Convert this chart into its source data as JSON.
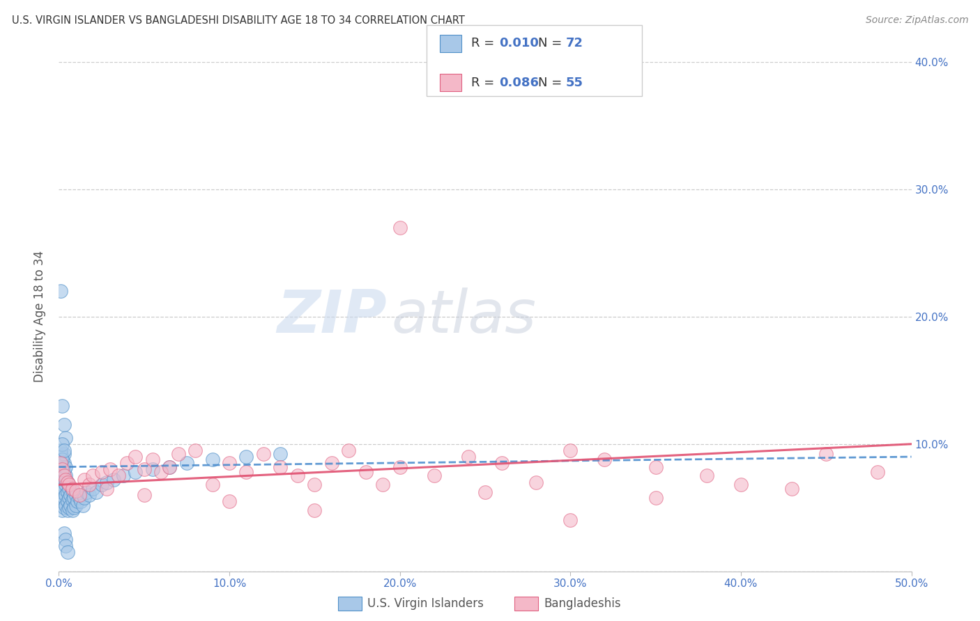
{
  "title": "U.S. VIRGIN ISLANDER VS BANGLADESHI DISABILITY AGE 18 TO 34 CORRELATION CHART",
  "source": "Source: ZipAtlas.com",
  "ylabel": "Disability Age 18 to 34",
  "xlim": [
    0.0,
    0.5
  ],
  "ylim": [
    0.0,
    0.4
  ],
  "xticks": [
    0.0,
    0.1,
    0.2,
    0.3,
    0.4,
    0.5
  ],
  "yticks": [
    0.0,
    0.1,
    0.2,
    0.3,
    0.4
  ],
  "xticklabels": [
    "0.0%",
    "10.0%",
    "20.0%",
    "30.0%",
    "40.0%",
    "50.0%"
  ],
  "yticklabels_right": [
    "",
    "10.0%",
    "20.0%",
    "30.0%",
    "40.0%"
  ],
  "legend_r1": "0.010",
  "legend_n1": "72",
  "legend_r2": "0.086",
  "legend_n2": "55",
  "blue_fill": "#a8c8e8",
  "pink_fill": "#f4b8c8",
  "blue_edge": "#5090c8",
  "pink_edge": "#e06080",
  "blue_line_color": "#4488cc",
  "pink_line_color": "#e05070",
  "title_color": "#333333",
  "axis_label_color": "#4472c4",
  "ylabel_color": "#555555",
  "watermark_zip": "ZIP",
  "watermark_atlas": "atlas",
  "blue_scatter_x": [
    0.001,
    0.001,
    0.001,
    0.001,
    0.001,
    0.002,
    0.002,
    0.002,
    0.002,
    0.002,
    0.002,
    0.002,
    0.003,
    0.003,
    0.003,
    0.003,
    0.003,
    0.003,
    0.003,
    0.004,
    0.004,
    0.004,
    0.004,
    0.004,
    0.005,
    0.005,
    0.005,
    0.005,
    0.006,
    0.006,
    0.006,
    0.007,
    0.007,
    0.008,
    0.008,
    0.008,
    0.009,
    0.009,
    0.01,
    0.01,
    0.011,
    0.012,
    0.013,
    0.014,
    0.015,
    0.016,
    0.018,
    0.02,
    0.022,
    0.025,
    0.028,
    0.032,
    0.038,
    0.045,
    0.055,
    0.065,
    0.075,
    0.09,
    0.11,
    0.13,
    0.002,
    0.003,
    0.004,
    0.001,
    0.001,
    0.002,
    0.002,
    0.003,
    0.003,
    0.004,
    0.004,
    0.005
  ],
  "blue_scatter_y": [
    0.057,
    0.065,
    0.072,
    0.078,
    0.085,
    0.048,
    0.055,
    0.062,
    0.068,
    0.075,
    0.082,
    0.09,
    0.05,
    0.058,
    0.065,
    0.072,
    0.079,
    0.085,
    0.092,
    0.052,
    0.06,
    0.068,
    0.075,
    0.082,
    0.048,
    0.055,
    0.062,
    0.07,
    0.05,
    0.058,
    0.065,
    0.052,
    0.06,
    0.048,
    0.056,
    0.063,
    0.05,
    0.058,
    0.052,
    0.06,
    0.055,
    0.058,
    0.055,
    0.052,
    0.058,
    0.062,
    0.06,
    0.065,
    0.062,
    0.068,
    0.07,
    0.072,
    0.075,
    0.078,
    0.08,
    0.082,
    0.085,
    0.088,
    0.09,
    0.092,
    0.13,
    0.115,
    0.105,
    0.22,
    0.095,
    0.1,
    0.088,
    0.095,
    0.03,
    0.025,
    0.02,
    0.015
  ],
  "pink_scatter_x": [
    0.001,
    0.002,
    0.003,
    0.004,
    0.005,
    0.006,
    0.008,
    0.01,
    0.012,
    0.015,
    0.018,
    0.02,
    0.025,
    0.028,
    0.03,
    0.035,
    0.04,
    0.045,
    0.05,
    0.055,
    0.06,
    0.065,
    0.07,
    0.08,
    0.09,
    0.1,
    0.11,
    0.12,
    0.13,
    0.14,
    0.15,
    0.16,
    0.17,
    0.18,
    0.19,
    0.2,
    0.22,
    0.24,
    0.26,
    0.28,
    0.3,
    0.32,
    0.35,
    0.38,
    0.4,
    0.43,
    0.45,
    0.48,
    0.05,
    0.1,
    0.15,
    0.25,
    0.3,
    0.35,
    0.2
  ],
  "pink_scatter_y": [
    0.085,
    0.08,
    0.075,
    0.072,
    0.07,
    0.068,
    0.065,
    0.063,
    0.06,
    0.072,
    0.068,
    0.075,
    0.078,
    0.065,
    0.08,
    0.075,
    0.085,
    0.09,
    0.08,
    0.088,
    0.078,
    0.082,
    0.092,
    0.095,
    0.068,
    0.085,
    0.078,
    0.092,
    0.082,
    0.075,
    0.068,
    0.085,
    0.095,
    0.078,
    0.068,
    0.082,
    0.075,
    0.09,
    0.085,
    0.07,
    0.095,
    0.088,
    0.082,
    0.075,
    0.068,
    0.065,
    0.092,
    0.078,
    0.06,
    0.055,
    0.048,
    0.062,
    0.04,
    0.058,
    0.27
  ],
  "blue_trend_x": [
    0.0,
    0.5
  ],
  "blue_trend_y": [
    0.082,
    0.09
  ],
  "pink_trend_x": [
    0.0,
    0.5
  ],
  "pink_trend_y": [
    0.068,
    0.1
  ]
}
